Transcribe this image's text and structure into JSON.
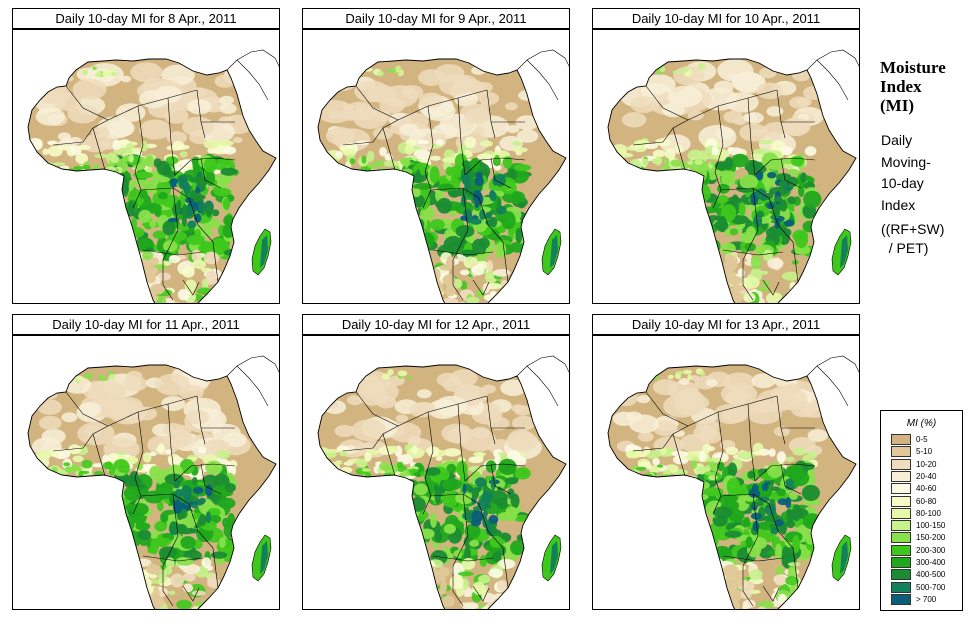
{
  "panels": [
    {
      "title": "Daily 10-day MI for  8 Apr., 2011",
      "wet_level": 1.0
    },
    {
      "title": "Daily 10-day MI for  9 Apr., 2011",
      "wet_level": 0.95
    },
    {
      "title": "Daily 10-day MI for  10 Apr., 2011",
      "wet_level": 0.9
    },
    {
      "title": "Daily 10-day MI for  11 Apr., 2011",
      "wet_level": 0.85
    },
    {
      "title": "Daily 10-day MI for  12 Apr., 2011",
      "wet_level": 0.85
    },
    {
      "title": "Daily 10-day MI for  13 Apr., 2011",
      "wet_level": 0.9
    }
  ],
  "side": {
    "title_lines": [
      "Moisture",
      "Index",
      "(MI)"
    ],
    "desc_lines": [
      "Daily",
      "Moving-",
      "10-day",
      "Index"
    ],
    "formula_lines": [
      "((RF+SW)",
      "  / PET)"
    ]
  },
  "legend": {
    "title": "MI (%)",
    "items": [
      {
        "label": "0-5",
        "color": "#d2b480"
      },
      {
        "label": "5-10",
        "color": "#e0c898"
      },
      {
        "label": "10-20",
        "color": "#efdcbc"
      },
      {
        "label": "20-40",
        "color": "#f8efd8"
      },
      {
        "label": "40-60",
        "color": "#fdfbe6"
      },
      {
        "label": "60-80",
        "color": "#f6fcc8"
      },
      {
        "label": "80-100",
        "color": "#e6f9a8"
      },
      {
        "label": "100-150",
        "color": "#c8f28c"
      },
      {
        "label": "150-200",
        "color": "#88e04a"
      },
      {
        "label": "200-300",
        "color": "#3fc81c"
      },
      {
        "label": "300-400",
        "color": "#20a81c"
      },
      {
        "label": "400-500",
        "color": "#1a8c32"
      },
      {
        "label": "500-700",
        "color": "#12805a"
      },
      {
        "label": "> 700",
        "color": "#0a5e7a"
      }
    ]
  }
}
